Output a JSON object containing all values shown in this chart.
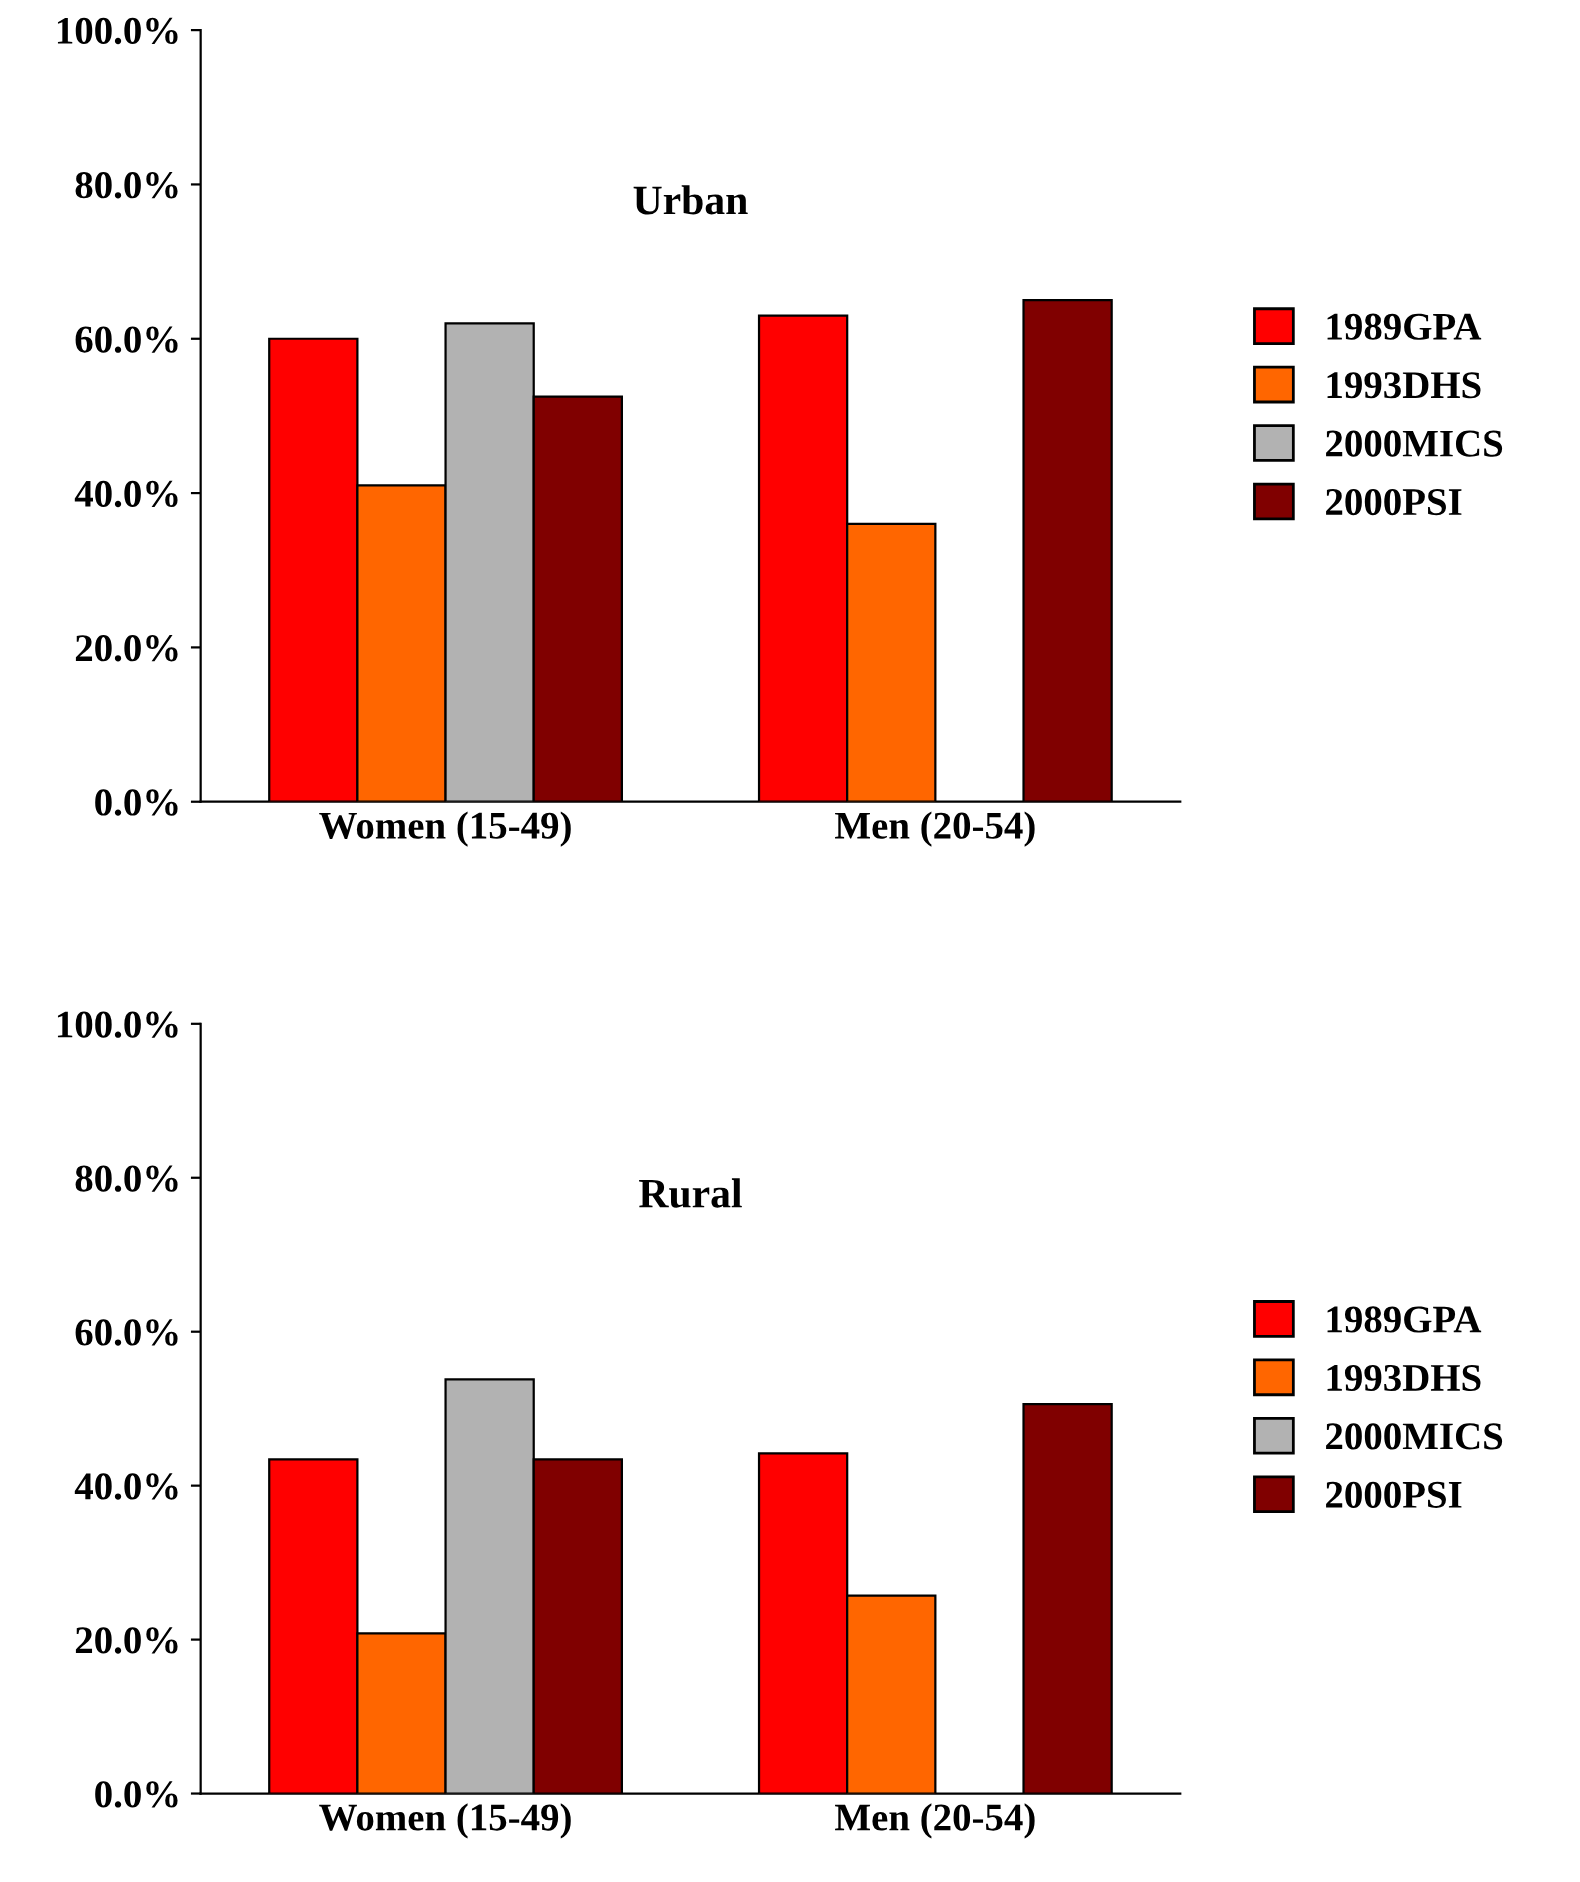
{
  "chart_data": [
    {
      "type": "bar",
      "title": "Urban",
      "categories": [
        "Women (15-49)",
        "Men (20-54)"
      ],
      "ylim": [
        0,
        100
      ],
      "yticks": [
        {
          "value": 0,
          "label": "0.0%"
        },
        {
          "value": 20,
          "label": "20.0%"
        },
        {
          "value": 40,
          "label": "40.0%"
        },
        {
          "value": 60,
          "label": "60.0%"
        },
        {
          "value": 80,
          "label": "80.0%"
        },
        {
          "value": 100,
          "label": "100.0%"
        }
      ],
      "legend": "right",
      "grid": false,
      "series": [
        {
          "name": "1989GPA",
          "color": "#ff0000",
          "values": [
            60,
            63
          ]
        },
        {
          "name": "1993DHS",
          "color": "#ff6600",
          "values": [
            41,
            36
          ]
        },
        {
          "name": "2000MICS",
          "color": "#b2b2b2",
          "values": [
            62,
            null
          ]
        },
        {
          "name": "2000PSI",
          "color": "#800000",
          "values": [
            52.5,
            65
          ]
        }
      ]
    },
    {
      "type": "bar",
      "title": "Rural",
      "categories": [
        "Women (15-49)",
        "Men (20-54)"
      ],
      "ylim": [
        0,
        100
      ],
      "yticks": [
        {
          "value": 0,
          "label": "0.0%"
        },
        {
          "value": 20,
          "label": "20.0%"
        },
        {
          "value": 40,
          "label": "40.0%"
        },
        {
          "value": 60,
          "label": "60.0%"
        },
        {
          "value": 80,
          "label": "80.0%"
        },
        {
          "value": 100,
          "label": "100.0%"
        }
      ],
      "legend": "right",
      "grid": false,
      "series": [
        {
          "name": "1989GPA",
          "color": "#ff0000",
          "values": [
            43.4,
            44.2
          ]
        },
        {
          "name": "1993DHS",
          "color": "#ff6600",
          "values": [
            20.8,
            25.7
          ]
        },
        {
          "name": "2000MICS",
          "color": "#b2b2b2",
          "values": [
            53.8,
            null
          ]
        },
        {
          "name": "2000PSI",
          "color": "#800000",
          "values": [
            43.4,
            50.6
          ]
        }
      ]
    }
  ]
}
